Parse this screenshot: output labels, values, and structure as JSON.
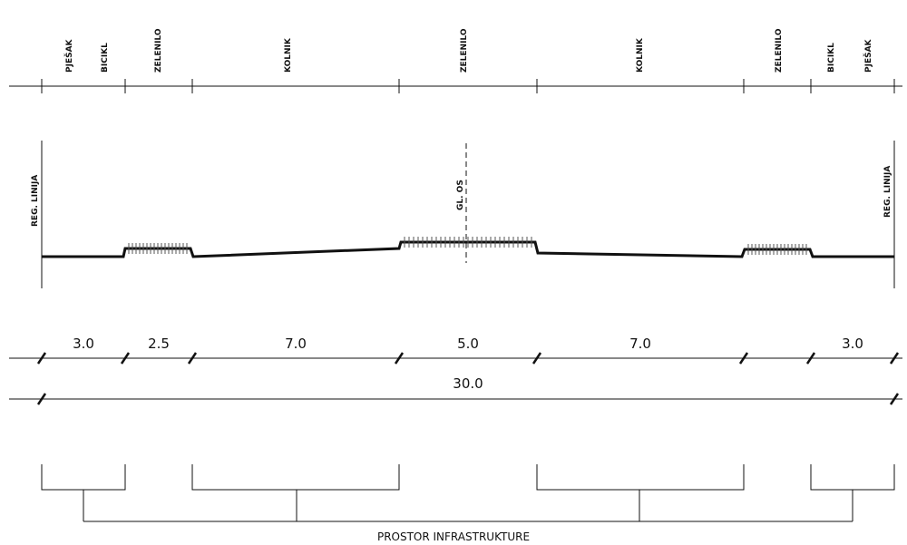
{
  "top_labels": {
    "pjesak_left": "PJEŠAK",
    "bicikl_left": "BICIKL",
    "zelenilo_left": "ZELENILO",
    "kolnik_left": "KOLNIK",
    "zelenilo_center": "ZELENILO",
    "kolnik_right": "KOLNIK",
    "zelenilo_right": "ZELENILO",
    "bicikl_right": "BICIKL",
    "pjesak_right": "PJEŠAK"
  },
  "reg_linija_left": "REG. LINIJA",
  "reg_linija_right": "REG. LINIJA",
  "axis_label": "GL. OS",
  "dimensions": {
    "d1": "3.0",
    "d2": "2.5",
    "d3": "7.0",
    "d4": "5.0",
    "d5": "7.0",
    "d6": "3.0",
    "total": "30.0"
  },
  "caption": "PROSTOR INFRASTRUKTURE",
  "colors": {
    "line": "#111111",
    "hatch": "#555555"
  }
}
